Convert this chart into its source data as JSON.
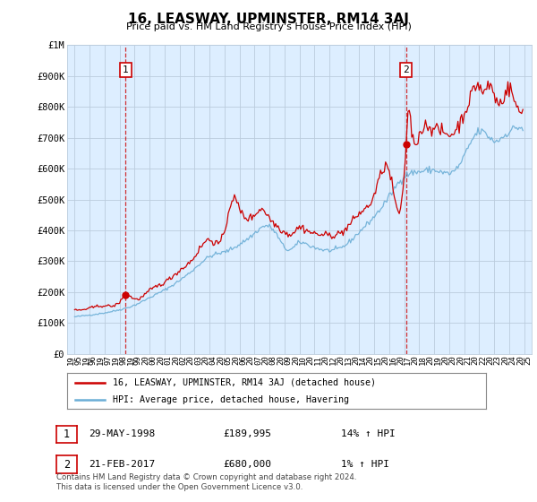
{
  "title": "16, LEASWAY, UPMINSTER, RM14 3AJ",
  "subtitle": "Price paid vs. HM Land Registry's House Price Index (HPI)",
  "footer": "Contains HM Land Registry data © Crown copyright and database right 2024.\nThis data is licensed under the Open Government Licence v3.0.",
  "legend_line1": "16, LEASWAY, UPMINSTER, RM14 3AJ (detached house)",
  "legend_line2": "HPI: Average price, detached house, Havering",
  "point1_label": "1",
  "point1_date": "29-MAY-1998",
  "point1_price": "£189,995",
  "point1_hpi": "14% ↑ HPI",
  "point2_label": "2",
  "point2_date": "21-FEB-2017",
  "point2_price": "£680,000",
  "point2_hpi": "1% ↑ HPI",
  "point1_year": 1998.41,
  "point1_value": 189995,
  "point2_year": 2017.12,
  "point2_value": 680000,
  "hpi_color": "#6baed6",
  "price_color": "#cc0000",
  "chart_bg_color": "#ddeeff",
  "background_color": "#ffffff",
  "grid_color": "#bbccdd",
  "ylim": [
    0,
    1000000
  ],
  "xlim_start": 1994.5,
  "xlim_end": 2025.5,
  "xtick_years": [
    1995,
    1996,
    1997,
    1998,
    1999,
    2000,
    2001,
    2002,
    2003,
    2004,
    2005,
    2006,
    2007,
    2008,
    2009,
    2010,
    2011,
    2012,
    2013,
    2014,
    2015,
    2016,
    2017,
    2018,
    2019,
    2020,
    2021,
    2022,
    2023,
    2024,
    2025
  ]
}
